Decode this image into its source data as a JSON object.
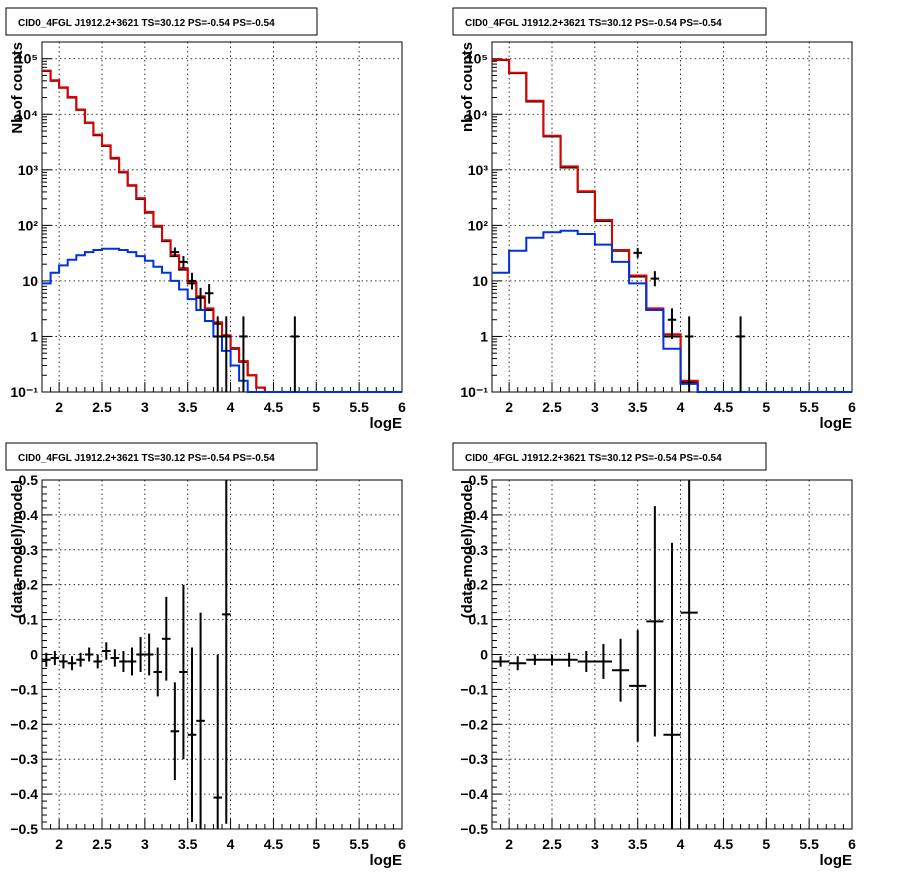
{
  "chart_data": [
    {
      "type": "line",
      "title": "CID0_4FGL J1912.2+3621 TS=30.12 PS=-0.54 PS=-0.54",
      "xlabel": "logE",
      "ylabel": "Nb of counts",
      "xlim": [
        1.8,
        6
      ],
      "ylim": [
        0.1,
        200000
      ],
      "yscale": "log",
      "grid": true,
      "xticks": [
        2,
        2.5,
        3,
        3.5,
        4,
        4.5,
        5,
        5.5,
        6
      ],
      "xtick_labels": [
        "2",
        "2.5",
        "3",
        "3.5",
        "4",
        "4.5",
        "5",
        "5.5",
        "6"
      ],
      "yticks": [
        0.1,
        1,
        10,
        100,
        1000,
        10000,
        100000
      ],
      "ytick_labels": [
        "10⁻¹",
        "1",
        "10",
        "10²",
        "10³",
        "10⁴",
        "10⁵"
      ],
      "bin_edges": [
        1.8,
        1.9,
        2.0,
        2.1,
        2.2,
        2.3,
        2.4,
        2.5,
        2.6,
        2.7,
        2.8,
        2.9,
        3.0,
        3.1,
        3.2,
        3.3,
        3.4,
        3.5,
        3.6,
        3.7,
        3.8,
        3.9,
        4.0,
        4.1,
        4.2,
        4.3,
        4.4,
        4.5,
        4.6,
        4.7,
        4.8,
        4.9,
        5.0,
        5.1,
        5.2,
        5.3,
        5.4,
        5.5,
        5.6,
        5.7,
        5.8,
        5.9,
        6.0
      ],
      "series": [
        {
          "color": "#000000",
          "values": [
            60000,
            40000,
            30000,
            20000,
            12000,
            7000,
            4200,
            2700,
            1600,
            900,
            520,
            300,
            170,
            95,
            52,
            28,
            16,
            9,
            5,
            3,
            1.7,
            1,
            0.6,
            0.35,
            0.2,
            0.12,
            0.1,
            0.1,
            0.1,
            0.1,
            0.1,
            0.1,
            0.1,
            0.1,
            0.1,
            0.1,
            0.1,
            0.1,
            0.1,
            0.1,
            0.1,
            0.1
          ]
        },
        {
          "color": "#e00000",
          "values": [
            61000,
            41000,
            30500,
            20500,
            12200,
            7100,
            4300,
            2750,
            1650,
            920,
            530,
            310,
            175,
            98,
            54,
            29,
            17,
            9.5,
            5.3,
            3.2,
            1.8,
            1.05,
            0.62,
            0.36,
            0.2,
            0.12,
            0.1,
            0.1,
            0.1,
            0.1,
            0.1,
            0.1,
            0.1,
            0.1,
            0.1,
            0.1,
            0.1,
            0.1,
            0.1,
            0.1,
            0.1,
            0.1
          ]
        },
        {
          "color": "#0030e0",
          "values": [
            9,
            14,
            19,
            24,
            29,
            33,
            36,
            38,
            38,
            36,
            33,
            28,
            23,
            18,
            14,
            10,
            7,
            4.7,
            3,
            1.9,
            1,
            0.55,
            0.3,
            0.16,
            0.1,
            0.1,
            0.1,
            0.1,
            0.1,
            0.1,
            0.1,
            0.1,
            0.1,
            0.1,
            0.1,
            0.1,
            0.1,
            0.1,
            0.1,
            0.1,
            0.1,
            0.1
          ]
        }
      ],
      "points": [
        {
          "x": 3.55,
          "y": 10,
          "ylo": 7,
          "yhi": 14
        },
        {
          "x": 3.65,
          "y": 5,
          "ylo": 3.1,
          "yhi": 7.5
        },
        {
          "x": 3.75,
          "y": 6,
          "ylo": 3.9,
          "yhi": 8.8
        },
        {
          "x": 3.35,
          "y": 33,
          "ylo": 27,
          "yhi": 40
        },
        {
          "x": 3.45,
          "y": 22,
          "ylo": 17,
          "yhi": 28
        },
        {
          "x": 3.85,
          "y": 1,
          "ylo": 0.1,
          "yhi": 2.3
        },
        {
          "x": 3.95,
          "y": 1,
          "ylo": 0.1,
          "yhi": 2.3
        },
        {
          "x": 4.15,
          "y": 1,
          "ylo": 0.1,
          "yhi": 2.3
        },
        {
          "x": 4.75,
          "y": 1,
          "ylo": 0.1,
          "yhi": 2.3
        }
      ]
    },
    {
      "type": "line",
      "title": "CID0_4FGL J1912.2+3621 TS=30.12 PS=-0.54 PS=-0.54",
      "xlabel": "logE",
      "ylabel": "nb of counts",
      "xlim": [
        1.8,
        6
      ],
      "ylim": [
        0.1,
        200000
      ],
      "yscale": "log",
      "grid": true,
      "xticks": [
        2,
        2.5,
        3,
        3.5,
        4,
        4.5,
        5,
        5.5,
        6
      ],
      "xtick_labels": [
        "2",
        "2.5",
        "3",
        "3.5",
        "4",
        "4.5",
        "5",
        "5.5",
        "6"
      ],
      "yticks": [
        0.1,
        1,
        10,
        100,
        1000,
        10000,
        100000
      ],
      "ytick_labels": [
        "10⁻¹",
        "1",
        "10",
        "10²",
        "10³",
        "10⁴",
        "10⁵"
      ],
      "bin_edges": [
        1.8,
        2.0,
        2.2,
        2.4,
        2.6,
        2.8,
        3.0,
        3.2,
        3.4,
        3.6,
        3.8,
        4.0,
        4.2,
        4.4,
        4.6,
        4.8,
        5.0,
        5.2,
        5.4,
        5.6,
        5.8,
        6.0
      ],
      "series": [
        {
          "color": "#000000",
          "values": [
            95000,
            55000,
            17000,
            4000,
            1100,
            400,
            120,
            35,
            12,
            3,
            1,
            0.15,
            0.1,
            0.1,
            0.1,
            0.1,
            0.1,
            0.1,
            0.1,
            0.1,
            0.1
          ]
        },
        {
          "color": "#e00000",
          "values": [
            96000,
            56000,
            17500,
            4100,
            1150,
            410,
            125,
            36,
            12.5,
            3.2,
            1.1,
            0.16,
            0.1,
            0.1,
            0.1,
            0.1,
            0.1,
            0.1,
            0.1,
            0.1,
            0.1
          ]
        },
        {
          "color": "#0030e0",
          "values": [
            14,
            35,
            60,
            75,
            80,
            70,
            45,
            22,
            9,
            3,
            0.6,
            0.14,
            0.1,
            0.1,
            0.1,
            0.1,
            0.1,
            0.1,
            0.1,
            0.1,
            0.1
          ]
        }
      ],
      "points": [
        {
          "x": 3.5,
          "y": 32,
          "ylo": 26,
          "yhi": 39
        },
        {
          "x": 3.7,
          "y": 11,
          "ylo": 8,
          "yhi": 15
        },
        {
          "x": 3.9,
          "y": 2,
          "ylo": 0.9,
          "yhi": 3.2
        },
        {
          "x": 4.1,
          "y": 1,
          "ylo": 0.1,
          "yhi": 2.3
        },
        {
          "x": 4.7,
          "y": 1,
          "ylo": 0.1,
          "yhi": 2.3
        }
      ]
    },
    {
      "type": "scatter",
      "title": "CID0_4FGL J1912.2+3621 TS=30.12 PS=-0.54 PS=-0.54",
      "xlabel": "logE",
      "ylabel": "(data-model)/model",
      "xlim": [
        1.8,
        6
      ],
      "ylim": [
        -0.5,
        0.5
      ],
      "grid": true,
      "xticks": [
        2,
        2.5,
        3,
        3.5,
        4,
        4.5,
        5,
        5.5,
        6
      ],
      "xtick_labels": [
        "2",
        "2.5",
        "3",
        "3.5",
        "4",
        "4.5",
        "5",
        "5.5",
        "6"
      ],
      "yticks": [
        -0.5,
        -0.4,
        -0.3,
        -0.2,
        -0.1,
        0,
        0.1,
        0.2,
        0.3,
        0.4,
        0.5
      ],
      "ytick_labels": [
        "−0.5",
        "−0.4",
        "−0.3",
        "−0.2",
        "−0.1",
        "0",
        "0.1",
        "0.2",
        "0.3",
        "0.4",
        "0.5"
      ],
      "xerr": 0.05,
      "points": [
        {
          "x": 1.85,
          "y": -0.015,
          "err": 0.02
        },
        {
          "x": 1.95,
          "y": -0.01,
          "err": 0.02
        },
        {
          "x": 2.05,
          "y": -0.02,
          "err": 0.02
        },
        {
          "x": 2.15,
          "y": -0.025,
          "err": 0.02
        },
        {
          "x": 2.25,
          "y": -0.015,
          "err": 0.02
        },
        {
          "x": 2.35,
          "y": 0.0,
          "err": 0.02
        },
        {
          "x": 2.45,
          "y": -0.02,
          "err": 0.02
        },
        {
          "x": 2.55,
          "y": 0.01,
          "err": 0.025
        },
        {
          "x": 2.65,
          "y": -0.01,
          "err": 0.025
        },
        {
          "x": 2.75,
          "y": -0.02,
          "err": 0.03
        },
        {
          "x": 2.85,
          "y": -0.02,
          "err": 0.04
        },
        {
          "x": 2.95,
          "y": 0.0,
          "err": 0.05
        },
        {
          "x": 3.05,
          "y": 0.0,
          "err": 0.06
        },
        {
          "x": 3.15,
          "y": -0.05,
          "err": 0.07
        },
        {
          "x": 3.25,
          "y": 0.045,
          "err": 0.12
        },
        {
          "x": 3.35,
          "y": -0.22,
          "err": 0.14
        },
        {
          "x": 3.45,
          "y": -0.05,
          "err": 0.25
        },
        {
          "x": 3.55,
          "y": -0.23,
          "err": 0.25
        },
        {
          "x": 3.65,
          "y": -0.19,
          "err": 0.31
        },
        {
          "x": 3.85,
          "y": -0.41,
          "err": 0.41
        },
        {
          "x": 3.95,
          "y": 0.115,
          "err": 0.6
        }
      ]
    },
    {
      "type": "scatter",
      "title": "CID0_4FGL J1912.2+3621 TS=30.12 PS=-0.54 PS=-0.54",
      "xlabel": "logE",
      "ylabel": "(data-model)/model",
      "xlim": [
        1.8,
        6
      ],
      "ylim": [
        -0.5,
        0.5
      ],
      "grid": true,
      "xticks": [
        2,
        2.5,
        3,
        3.5,
        4,
        4.5,
        5,
        5.5,
        6
      ],
      "xtick_labels": [
        "2",
        "2.5",
        "3",
        "3.5",
        "4",
        "4.5",
        "5",
        "5.5",
        "6"
      ],
      "yticks": [
        -0.5,
        -0.4,
        -0.3,
        -0.2,
        -0.1,
        0,
        0.1,
        0.2,
        0.3,
        0.4,
        0.5
      ],
      "ytick_labels": [
        "−0.5",
        "−0.4",
        "−0.3",
        "−0.2",
        "−0.1",
        "0",
        "0.1",
        "0.2",
        "0.3",
        "0.4",
        "0.5"
      ],
      "xerr": 0.1,
      "points": [
        {
          "x": 1.9,
          "y": -0.02,
          "err": 0.015
        },
        {
          "x": 2.1,
          "y": -0.025,
          "err": 0.02
        },
        {
          "x": 2.3,
          "y": -0.015,
          "err": 0.015
        },
        {
          "x": 2.5,
          "y": -0.015,
          "err": 0.015
        },
        {
          "x": 2.7,
          "y": -0.015,
          "err": 0.02
        },
        {
          "x": 2.9,
          "y": -0.02,
          "err": 0.03
        },
        {
          "x": 3.1,
          "y": -0.02,
          "err": 0.05
        },
        {
          "x": 3.3,
          "y": -0.045,
          "err": 0.09
        },
        {
          "x": 3.5,
          "y": -0.09,
          "err": 0.16
        },
        {
          "x": 3.7,
          "y": 0.095,
          "err": 0.33
        },
        {
          "x": 3.9,
          "y": -0.23,
          "err": 0.55
        },
        {
          "x": 4.1,
          "y": 0.12,
          "err": 0.8
        }
      ]
    }
  ]
}
